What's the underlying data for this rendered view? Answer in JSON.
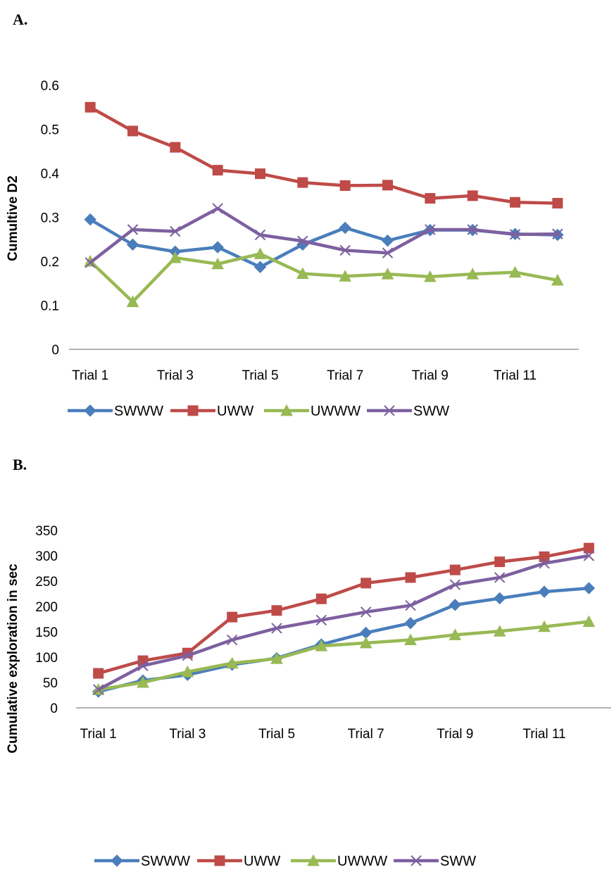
{
  "chart_data": [
    {
      "panel_label": "A.",
      "type": "line",
      "categories": [
        "Trial 1",
        "Trial 2",
        "Trial 3",
        "Trial 4",
        "Trial 5",
        "Trial 6",
        "Trial 7",
        "Trial 8",
        "Trial 9",
        "Trial 10",
        "Trial 11",
        "Trial 12"
      ],
      "x_tick_labels": [
        "Trial 1",
        "Trial 3",
        "Trial 5",
        "Trial 7",
        "Trial 9",
        "Trial 11"
      ],
      "ylabel": "Cumultive D2",
      "ylim": [
        0,
        0.6
      ],
      "y_ticks": [
        "0",
        "0.1",
        "0.2",
        "0.3",
        "0.4",
        "0.5",
        "0.6"
      ],
      "grid": false,
      "legend_position": "bottom",
      "series": [
        {
          "name": "SWWW",
          "color": "#4a7ebb",
          "marker": "diamond",
          "values": [
            0.295,
            0.238,
            0.222,
            0.232,
            0.187,
            0.238,
            0.276,
            0.247,
            0.271,
            0.271,
            0.262,
            0.26
          ]
        },
        {
          "name": "UWW",
          "color": "#be4b48",
          "marker": "square",
          "values": [
            0.55,
            0.496,
            0.459,
            0.407,
            0.399,
            0.379,
            0.372,
            0.373,
            0.343,
            0.349,
            0.334,
            0.332
          ]
        },
        {
          "name": "UWWW",
          "color": "#98b954",
          "marker": "triangle",
          "values": [
            0.2,
            0.108,
            0.208,
            0.194,
            0.217,
            0.172,
            0.166,
            0.171,
            0.165,
            0.171,
            0.175,
            0.157
          ]
        },
        {
          "name": "SWW",
          "color": "#7d60a0",
          "marker": "x",
          "values": [
            0.197,
            0.272,
            0.268,
            0.32,
            0.26,
            0.246,
            0.225,
            0.219,
            0.272,
            0.272,
            0.261,
            0.262
          ]
        }
      ]
    },
    {
      "panel_label": "B.",
      "type": "line",
      "categories": [
        "Trial 1",
        "Trial 2",
        "Trial 3",
        "Trial 4",
        "Trial 5",
        "Trial 6",
        "Trial 7",
        "Trial 8",
        "Trial 9",
        "Trial 10",
        "Trial 11",
        "Trial 12"
      ],
      "x_tick_labels": [
        "Trial 1",
        "Trial 3",
        "Trial 5",
        "Trial 7",
        "Trial 9",
        "Trial 11"
      ],
      "ylabel": "Cumulative exploration in sec",
      "ylim": [
        0,
        350
      ],
      "y_ticks": [
        "0",
        "50",
        "100",
        "150",
        "200",
        "250",
        "300",
        "350"
      ],
      "grid": false,
      "legend_position": "bottom",
      "series": [
        {
          "name": "SWWW",
          "color": "#4a7ebb",
          "marker": "diamond",
          "values": [
            32,
            54,
            65,
            85,
            98,
            125,
            148,
            167,
            203,
            216,
            229,
            236
          ]
        },
        {
          "name": "UWW",
          "color": "#be4b48",
          "marker": "square",
          "values": [
            68,
            93,
            108,
            179,
            192,
            215,
            246,
            257,
            272,
            288,
            298,
            315
          ]
        },
        {
          "name": "UWWW",
          "color": "#98b954",
          "marker": "triangle",
          "values": [
            36,
            50,
            71,
            88,
            97,
            122,
            128,
            134,
            144,
            151,
            160,
            170
          ]
        },
        {
          "name": "SWW",
          "color": "#7d60a0",
          "marker": "x",
          "values": [
            36,
            83,
            103,
            134,
            157,
            173,
            189,
            202,
            243,
            257,
            285,
            300
          ]
        }
      ]
    }
  ]
}
